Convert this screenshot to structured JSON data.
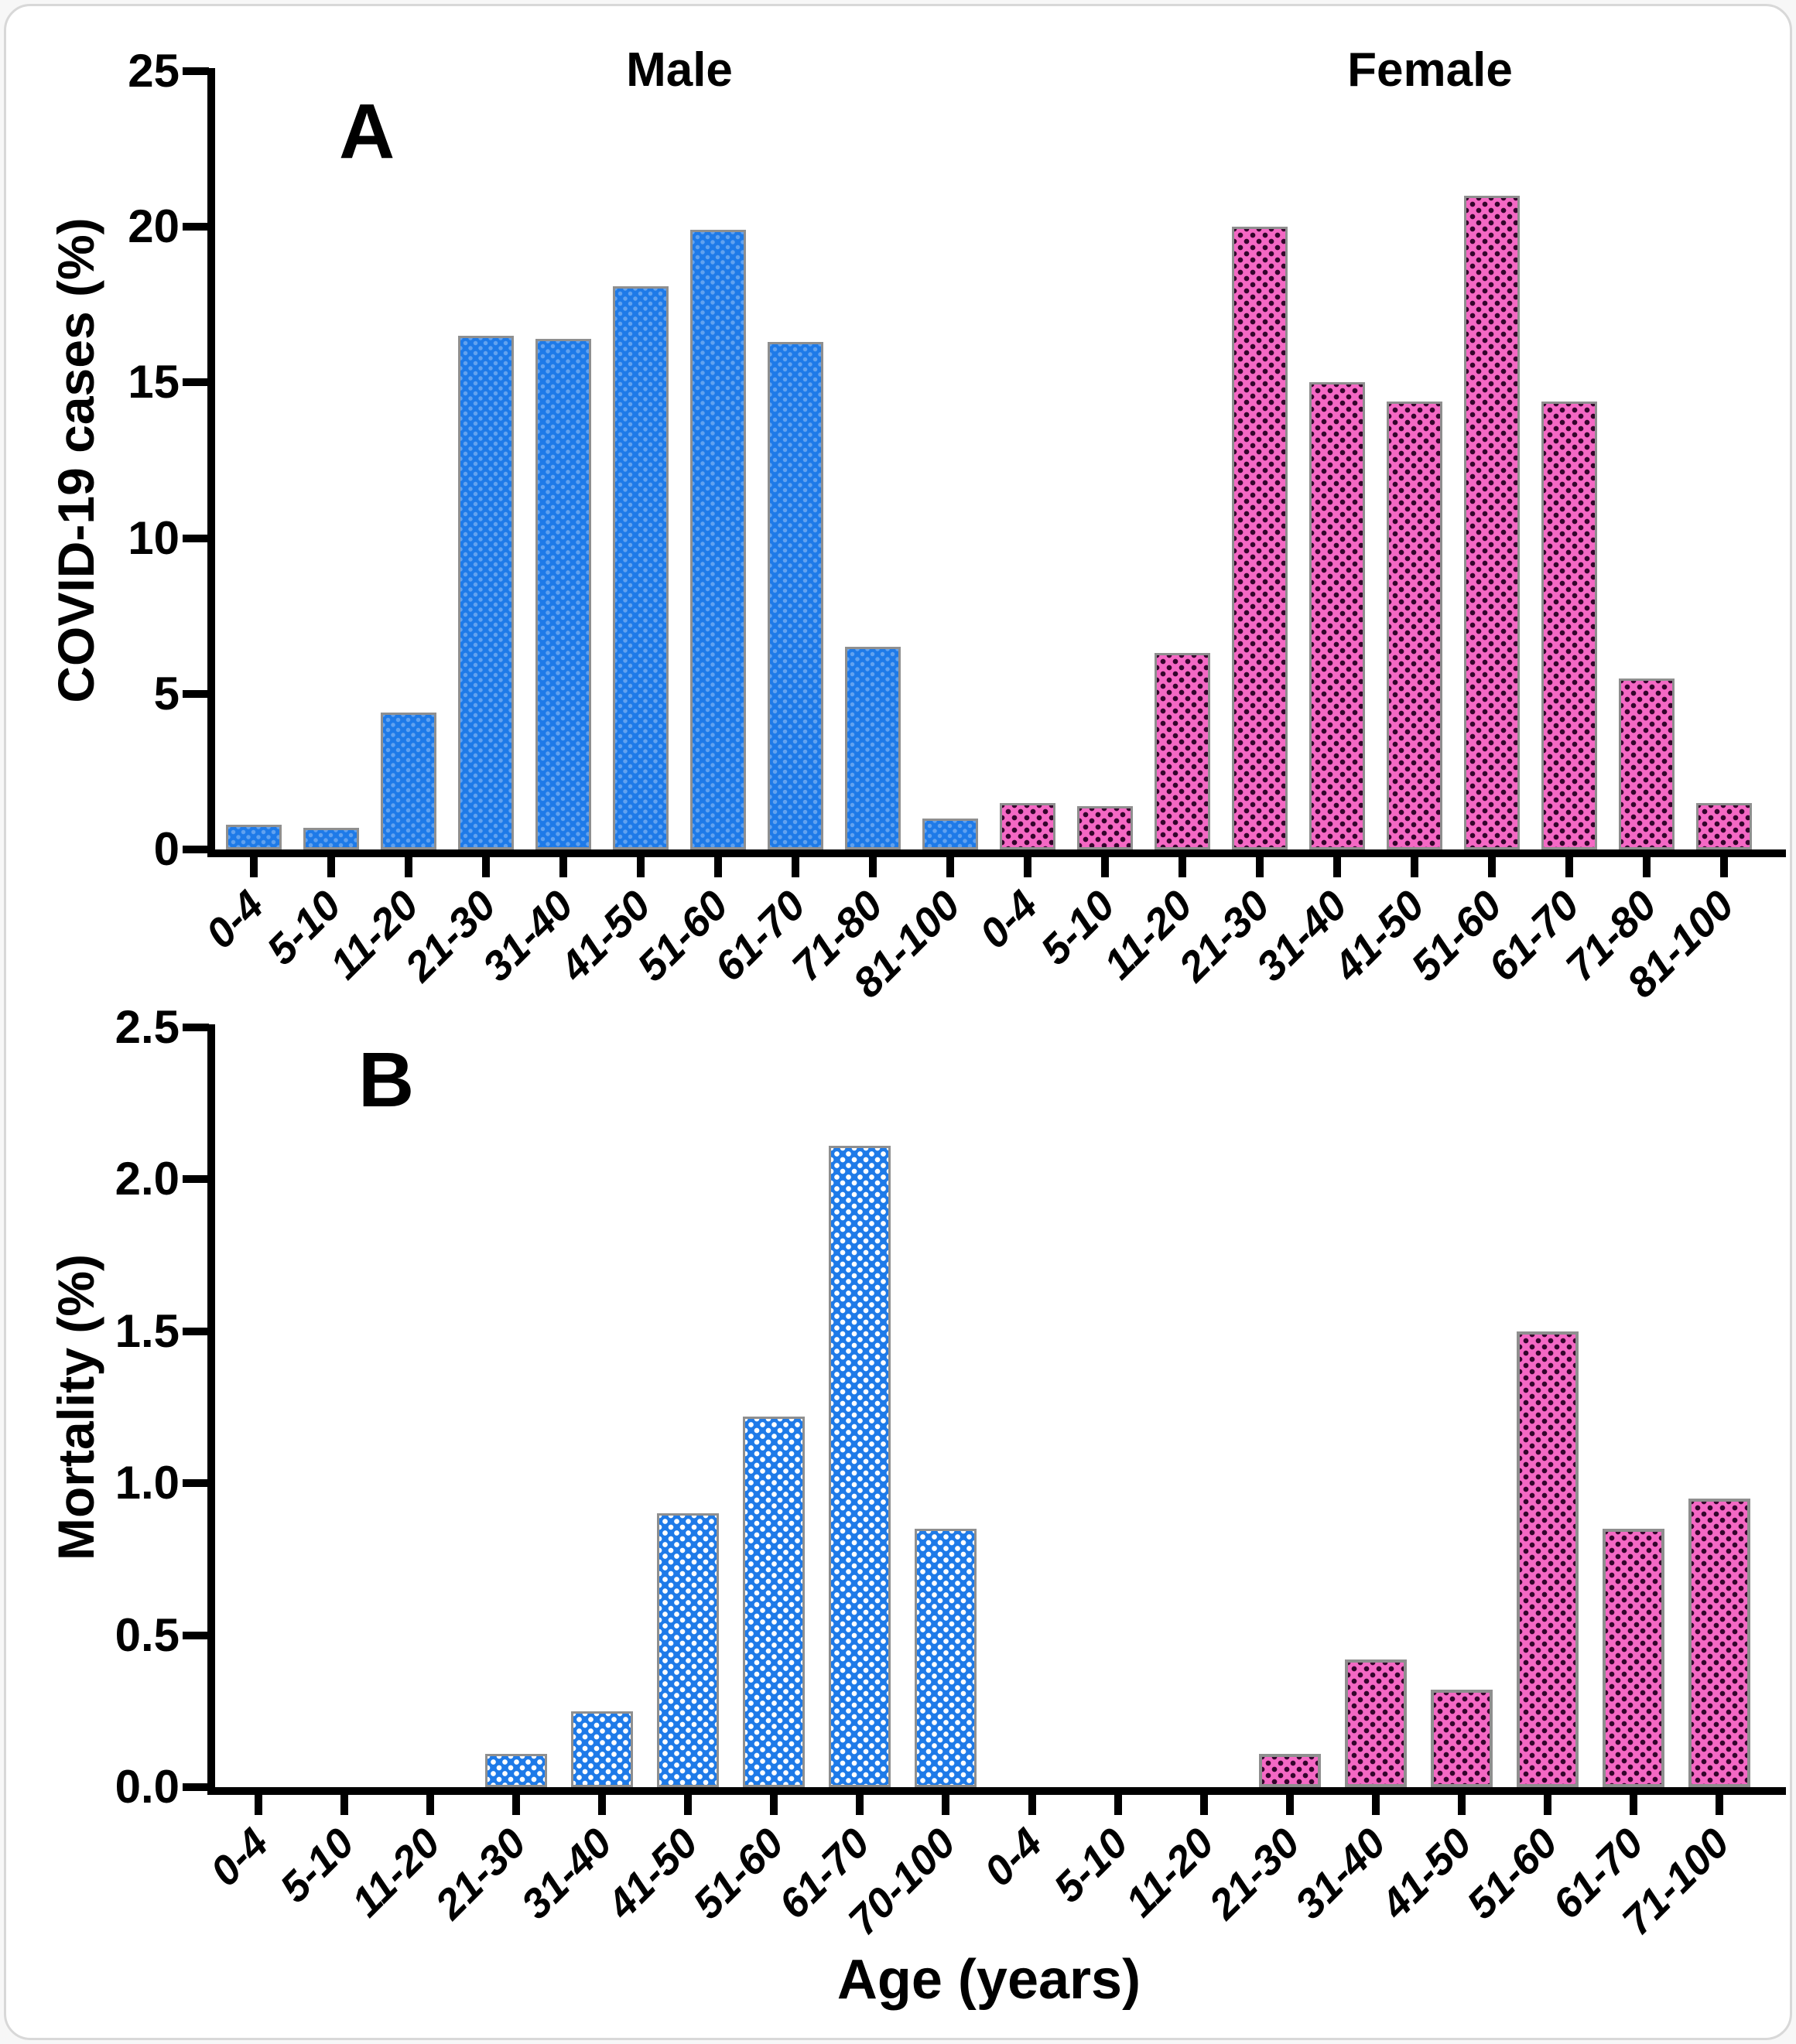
{
  "xlabel": "Age (years)",
  "colors": {
    "male_fill": "#1e7ae8",
    "female_fill": "#f468c4",
    "female_dot": "#33042b",
    "bar_outline": "#8f8f8f",
    "axis": "#000000"
  },
  "chart_data": [
    {
      "type": "bar",
      "label": "A",
      "ylabel": "COVID-19 cases (%)",
      "xlabel": "Age (years)",
      "ylim": [
        0,
        25
      ],
      "ytick_labels": [
        "0",
        "5",
        "10",
        "15",
        "20",
        "25"
      ],
      "grid": false,
      "legend_position": "none",
      "group_titles": [
        "Male",
        "Female"
      ],
      "series": [
        {
          "name": "Male",
          "categories": [
            "0-4",
            "5-10",
            "11-20",
            "21-30",
            "31-40",
            "41-50",
            "51-60",
            "61-70",
            "71-80",
            "81-100"
          ],
          "values": [
            0.8,
            0.7,
            4.4,
            16.5,
            16.4,
            18.1,
            19.9,
            16.3,
            6.5,
            1.0
          ]
        },
        {
          "name": "Female",
          "categories": [
            "0-4",
            "5-10",
            "11-20",
            "21-30",
            "31-40",
            "41-50",
            "51-60",
            "61-70",
            "71-80",
            "81-100"
          ],
          "values": [
            1.5,
            1.4,
            6.3,
            20.0,
            15.0,
            14.4,
            21.0,
            14.4,
            5.5,
            1.5
          ]
        }
      ]
    },
    {
      "type": "bar",
      "label": "B",
      "ylabel": "Mortality (%)",
      "xlabel": "Age (years)",
      "ylim": [
        0,
        2.5
      ],
      "ytick_labels": [
        "0.0",
        "0.5",
        "1.0",
        "1.5",
        "2.0",
        "2.5"
      ],
      "grid": false,
      "legend_position": "none",
      "group_titles": [],
      "series": [
        {
          "name": "Male",
          "categories": [
            "0-4",
            "5-10",
            "11-20",
            "21-30",
            "31-40",
            "41-50",
            "51-60",
            "61-70",
            "70-100"
          ],
          "values": [
            0,
            0,
            0,
            0.11,
            0.25,
            0.9,
            1.22,
            2.11,
            0.85
          ]
        },
        {
          "name": "Female",
          "categories": [
            "0-4",
            "5-10",
            "11-20",
            "21-30",
            "31-40",
            "41-50",
            "51-60",
            "61-70",
            "71-100"
          ],
          "values": [
            0,
            0,
            0,
            0.11,
            0.42,
            0.32,
            1.5,
            0.85,
            0.95
          ]
        }
      ]
    }
  ]
}
